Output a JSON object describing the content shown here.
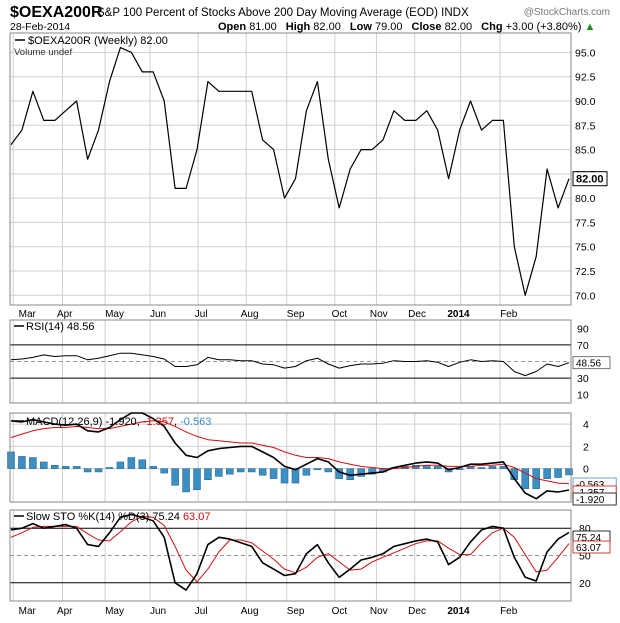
{
  "header": {
    "symbol": "$OEXA200R",
    "description": "S&P 100 Percent of Stocks Above 200 Day Moving Average (EOD)",
    "exchange": "INDX",
    "watermark": "@StockCharts.com",
    "date": "28-Feb-2014",
    "ohlc": {
      "open_label": "Open",
      "open": "81.00",
      "high_label": "High",
      "high": "82.00",
      "low_label": "Low",
      "low": "79.00",
      "close_label": "Close",
      "close": "82.00",
      "chg_label": "Chg",
      "chg": "+3.00 (+3.80%)"
    },
    "arrow": "▲"
  },
  "colors": {
    "price": "#000000",
    "macd_signal": "#d01010",
    "macd_hist": "#3c8fc3",
    "sto_d": "#d01010",
    "grid": "#cfcfcf",
    "frame": "#888888"
  },
  "chart_data": [
    {
      "type": "line",
      "legend": "$OEXA200R (Weekly) 82.00",
      "sublegend": "Volume undef",
      "ylim": [
        69,
        97
      ],
      "yticks": [
        "95.0",
        "92.5",
        "90.0",
        "87.5",
        "85.0",
        "82.5",
        "80.0",
        "77.5",
        "75.0",
        "72.5",
        "70.0"
      ],
      "last_label": "82.00",
      "x_labels": [
        {
          "w": 0.7,
          "label": "Mar"
        },
        {
          "w": 4.2,
          "label": "Apr"
        },
        {
          "w": 8.6,
          "label": "May"
        },
        {
          "w": 12.7,
          "label": "Jun"
        },
        {
          "w": 16.8,
          "label": "Jul"
        },
        {
          "w": 21.0,
          "label": "Aug"
        },
        {
          "w": 25.2,
          "label": "Sep"
        },
        {
          "w": 29.3,
          "label": "Oct"
        },
        {
          "w": 32.8,
          "label": "Nov"
        },
        {
          "w": 36.3,
          "label": "Dec"
        },
        {
          "w": 40.9,
          "label": "2014"
        },
        {
          "w": 44.7,
          "label": "Feb"
        }
      ],
      "grid_weeks": [
        0.2,
        4.7,
        8.6,
        12.7,
        17.1,
        21.5,
        25.2,
        29.6,
        33.4,
        36.9,
        41.1,
        44.7
      ],
      "values": [
        85.5,
        87,
        91,
        88,
        88,
        89,
        90,
        84,
        87,
        92,
        95.5,
        95,
        93,
        93,
        90,
        81,
        81,
        85,
        92,
        91,
        91,
        91,
        91,
        86,
        85,
        80,
        82,
        89,
        92,
        84,
        79,
        83,
        85,
        85,
        86,
        89,
        88,
        88,
        89,
        87,
        82,
        87,
        90,
        87,
        88,
        88,
        75,
        70,
        74,
        83,
        79,
        82
      ]
    },
    {
      "type": "line",
      "legend": "RSI(14) 48.56",
      "ylim": [
        0,
        100
      ],
      "yticks": [
        "90",
        "70",
        "50",
        "30",
        "10"
      ],
      "ref_lines": [
        70,
        50,
        30
      ],
      "last_label": "48.56",
      "values": [
        52,
        53,
        55,
        58,
        56,
        57,
        57,
        52,
        54,
        57,
        60,
        60,
        58,
        56,
        53,
        44,
        44,
        46,
        55,
        52,
        52,
        51,
        51,
        47,
        46,
        42,
        44,
        51,
        54,
        47,
        42,
        45,
        47,
        47,
        48,
        51,
        50,
        50,
        51,
        49,
        44,
        49,
        52,
        50,
        51,
        50,
        38,
        33,
        38,
        47,
        44,
        48.56
      ]
    },
    {
      "type": "line",
      "legend": "MACD(12,26,9)",
      "macd_value": "-1.920",
      "signal_value": "-1.357",
      "hist_value": "-0.563",
      "ylim": [
        -3,
        5
      ],
      "yticks": [
        "4",
        "2",
        "0"
      ],
      "last_labels": [
        "-0.563",
        "-1.357",
        "-1.920"
      ],
      "macd": [
        4.3,
        4.2,
        4.4,
        4.2,
        4.0,
        3.9,
        4.0,
        3.4,
        3.3,
        3.7,
        4.4,
        5.0,
        5.0,
        4.5,
        3.8,
        2.3,
        1.2,
        1.0,
        1.6,
        1.8,
        1.9,
        2.0,
        2.0,
        1.5,
        1.0,
        0.2,
        -0.1,
        0.4,
        0.9,
        0.6,
        -0.3,
        -0.6,
        -0.5,
        -0.4,
        -0.3,
        0.1,
        0.3,
        0.5,
        0.6,
        0.5,
        -0.1,
        0.1,
        0.4,
        0.4,
        0.5,
        0.6,
        -0.9,
        -2.2,
        -2.7,
        -2.0,
        -2.1,
        -1.92
      ],
      "signal": [
        2.8,
        3.1,
        3.4,
        3.6,
        3.7,
        3.7,
        3.8,
        3.7,
        3.6,
        3.6,
        3.8,
        4.0,
        4.2,
        4.3,
        4.2,
        3.8,
        3.3,
        2.9,
        2.6,
        2.5,
        2.4,
        2.3,
        2.3,
        2.1,
        1.9,
        1.5,
        1.2,
        1.0,
        1.0,
        0.9,
        0.6,
        0.4,
        0.2,
        0.1,
        0.0,
        0.0,
        0.1,
        0.2,
        0.3,
        0.3,
        0.2,
        0.2,
        0.2,
        0.3,
        0.3,
        0.4,
        0.1,
        -0.4,
        -0.9,
        -1.1,
        -1.3,
        -1.357
      ],
      "histogram": [
        1.5,
        1.1,
        1.0,
        0.6,
        0.3,
        0.2,
        0.2,
        -0.3,
        -0.3,
        0.1,
        0.6,
        1.0,
        0.8,
        0.2,
        -0.4,
        -1.5,
        -2.1,
        -1.9,
        -1.0,
        -0.7,
        -0.5,
        -0.3,
        -0.3,
        -0.6,
        -0.9,
        -1.3,
        -1.3,
        -0.6,
        -0.1,
        -0.3,
        -0.9,
        -1.0,
        -0.7,
        -0.5,
        -0.3,
        0.1,
        0.2,
        0.3,
        0.3,
        0.2,
        -0.3,
        -0.1,
        0.2,
        0.1,
        0.2,
        0.2,
        -1.0,
        -1.8,
        -1.8,
        -0.9,
        -0.8,
        -0.563
      ]
    },
    {
      "type": "line",
      "legend": "Slow STO %K(14) %D(3)",
      "k_value": "75.24",
      "d_value": "63.07",
      "ylim": [
        0,
        100
      ],
      "yticks": [
        "80",
        "50",
        "20"
      ],
      "ref_lines": [
        80,
        50,
        20
      ],
      "last_labels": [
        "75.24",
        "63.07"
      ],
      "k": [
        78,
        80,
        85,
        80,
        82,
        84,
        80,
        62,
        60,
        75,
        92,
        95,
        92,
        88,
        70,
        20,
        12,
        30,
        62,
        70,
        68,
        64,
        60,
        42,
        35,
        28,
        30,
        52,
        62,
        42,
        26,
        35,
        45,
        48,
        52,
        60,
        63,
        66,
        68,
        65,
        40,
        48,
        65,
        78,
        82,
        80,
        48,
        26,
        22,
        54,
        68,
        75.24
      ],
      "d": [
        70,
        75,
        81,
        82,
        82,
        82,
        82,
        74,
        67,
        66,
        76,
        87,
        93,
        92,
        83,
        60,
        34,
        21,
        35,
        54,
        67,
        67,
        64,
        55,
        46,
        35,
        31,
        37,
        48,
        52,
        43,
        34,
        35,
        43,
        48,
        53,
        58,
        63,
        66,
        66,
        58,
        51,
        51,
        64,
        75,
        80,
        70,
        51,
        32,
        34,
        48,
        63.07
      ]
    }
  ]
}
